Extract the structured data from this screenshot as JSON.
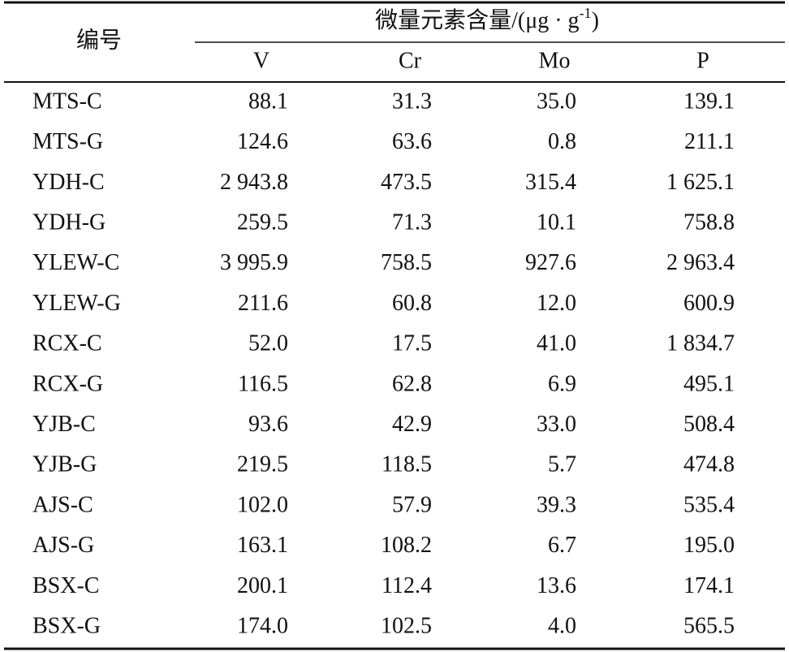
{
  "header": {
    "id_label": "编号",
    "group": {
      "text": "微量元素含量/(μg · g",
      "sup": "-1",
      "close": ")"
    },
    "columns": [
      "V",
      "Cr",
      "Mo",
      "P"
    ]
  },
  "table": {
    "rows": [
      [
        "MTS-C",
        "88.1",
        "31.3",
        "35.0",
        "139.1"
      ],
      [
        "MTS-G",
        "124.6",
        "63.6",
        "0.8",
        "211.1"
      ],
      [
        "YDH-C",
        "2 943.8",
        "473.5",
        "315.4",
        "1 625.1"
      ],
      [
        "YDH-G",
        "259.5",
        "71.3",
        "10.1",
        "758.8"
      ],
      [
        "YLEW-C",
        "3 995.9",
        "758.5",
        "927.6",
        "2 963.4"
      ],
      [
        "YLEW-G",
        "211.6",
        "60.8",
        "12.0",
        "600.9"
      ],
      [
        "RCX-C",
        "52.0",
        "17.5",
        "41.0",
        "1 834.7"
      ],
      [
        "RCX-G",
        "116.5",
        "62.8",
        "6.9",
        "495.1"
      ],
      [
        "YJB-C",
        "93.6",
        "42.9",
        "33.0",
        "508.4"
      ],
      [
        "YJB-G",
        "219.5",
        "118.5",
        "5.7",
        "474.8"
      ],
      [
        "AJS-C",
        "102.0",
        "57.9",
        "39.3",
        "535.4"
      ],
      [
        "AJS-G",
        "163.1",
        "108.2",
        "6.7",
        "195.0"
      ],
      [
        "BSX-C",
        "200.1",
        "112.4",
        "13.6",
        "174.1"
      ],
      [
        "BSX-G",
        "174.0",
        "102.5",
        "4.0",
        "565.5"
      ]
    ]
  }
}
